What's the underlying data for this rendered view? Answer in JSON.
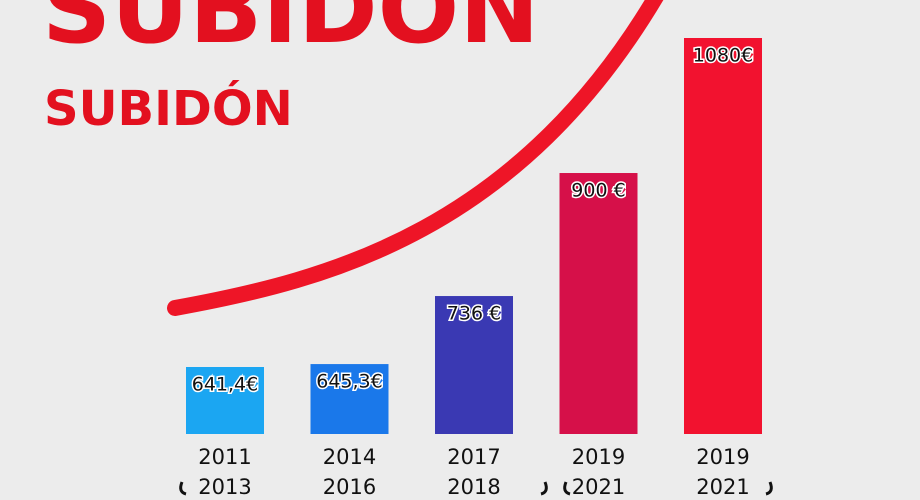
{
  "chart_data": {
    "type": "bar",
    "title": "SUBIDÓN",
    "subtitle": "SUBIDÓN",
    "categories": [
      "2011 2013",
      "2014 2016",
      "2017 2018",
      "2019 2021",
      "2019 2021"
    ],
    "values": [
      641.4,
      645.3,
      736,
      900,
      1080
    ],
    "value_labels": [
      "641,4€",
      "645,3€",
      "736 €",
      "900 €",
      "1080€"
    ],
    "colors": [
      "#1ba6f2",
      "#1a78ea",
      "#3a39b3",
      "#d61049",
      "#f2122f"
    ]
  }
}
